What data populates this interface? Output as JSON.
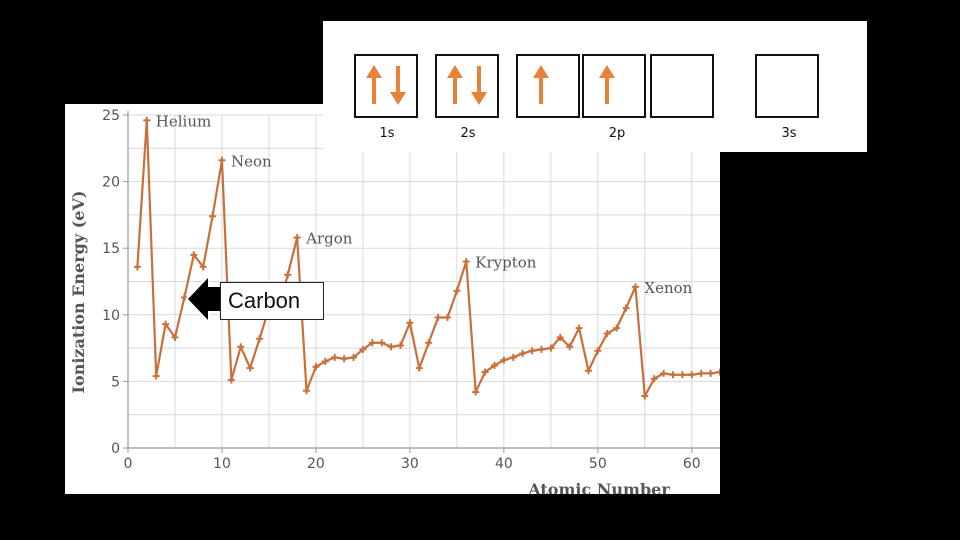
{
  "colors": {
    "background": "#000000",
    "series": "#c8703a",
    "arrow": "#e8823a",
    "grid": "#d9d9d9"
  },
  "orbital_diagram": {
    "boxes": [
      {
        "orbital": "1s",
        "electrons": [
          "up",
          "down"
        ]
      },
      {
        "orbital": "2s",
        "electrons": [
          "up",
          "down"
        ]
      },
      {
        "orbital": "2p",
        "electrons": [
          "up"
        ]
      },
      {
        "orbital": "2p",
        "electrons": [
          "up"
        ]
      },
      {
        "orbital": "2p",
        "electrons": []
      },
      {
        "orbital": "3s",
        "electrons": []
      }
    ],
    "labels": {
      "s1": "1s",
      "s2": "2s",
      "p2": "2p",
      "s3": "3s"
    }
  },
  "callout": {
    "text": "Carbon",
    "arrow_icon": "left-arrow-icon"
  },
  "chart_data": {
    "type": "line",
    "title": "",
    "xlabel": "Atomic Number",
    "ylabel": "Ionization Energy (eV)",
    "xlim": [
      0,
      63
    ],
    "ylim": [
      0,
      25
    ],
    "xticks": [
      0,
      10,
      20,
      30,
      40,
      50,
      60
    ],
    "yticks": [
      0,
      5,
      10,
      15,
      20,
      25
    ],
    "grid": true,
    "marker": "plus",
    "series": [
      {
        "x": [
          1,
          2,
          3,
          4,
          5,
          6,
          7,
          8,
          9,
          10,
          11,
          12,
          13,
          14,
          15,
          16,
          17,
          18,
          19,
          20,
          21,
          22,
          23,
          24,
          25,
          26,
          27,
          28,
          29,
          30,
          31,
          32,
          33,
          34,
          35,
          36,
          37,
          38,
          39,
          40,
          41,
          42,
          43,
          44,
          45,
          46,
          47,
          48,
          49,
          50,
          51,
          52,
          53,
          54,
          55,
          56,
          57,
          58,
          59,
          60,
          61,
          62,
          63
        ],
        "y": [
          13.6,
          24.6,
          5.4,
          9.3,
          8.3,
          11.3,
          14.5,
          13.6,
          17.4,
          21.6,
          5.1,
          7.6,
          6.0,
          8.2,
          10.5,
          10.4,
          13.0,
          15.8,
          4.3,
          6.1,
          6.5,
          6.8,
          6.7,
          6.8,
          7.4,
          7.9,
          7.9,
          7.6,
          7.7,
          9.4,
          6.0,
          7.9,
          9.8,
          9.8,
          11.8,
          14.0,
          4.2,
          5.7,
          6.2,
          6.6,
          6.8,
          7.1,
          7.3,
          7.4,
          7.5,
          8.3,
          7.6,
          9.0,
          5.8,
          7.3,
          8.6,
          9.0,
          10.5,
          12.1,
          3.9,
          5.2,
          5.6,
          5.5,
          5.5,
          5.5,
          5.6,
          5.6,
          5.7
        ]
      }
    ],
    "annotations": [
      {
        "text": "Helium",
        "x": 2,
        "y": 24.6
      },
      {
        "text": "Neon",
        "x": 10,
        "y": 21.6
      },
      {
        "text": "Argon",
        "x": 18,
        "y": 15.8
      },
      {
        "text": "Krypton",
        "x": 36,
        "y": 14.0
      },
      {
        "text": "Xenon",
        "x": 54,
        "y": 12.1
      }
    ]
  }
}
